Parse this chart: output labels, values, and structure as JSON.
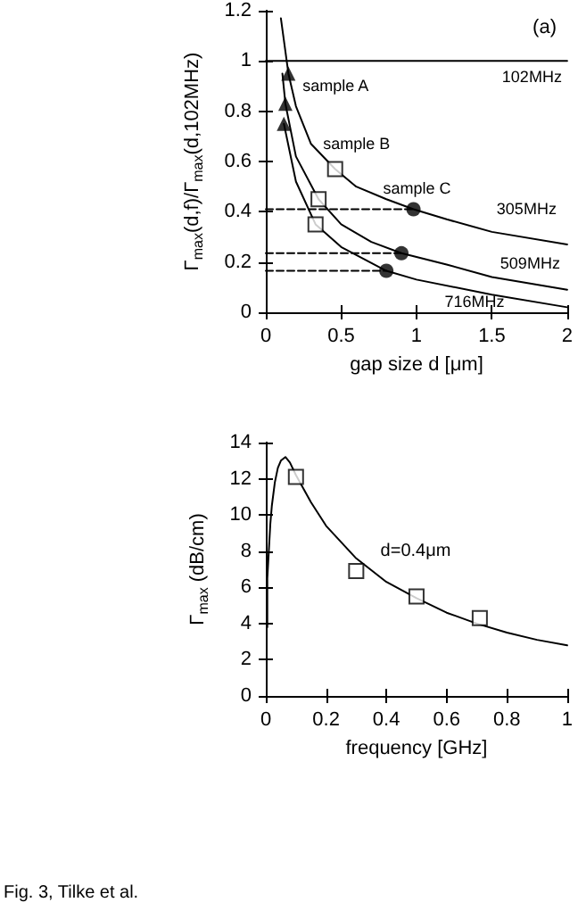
{
  "chart_data": [
    {
      "type": "line",
      "title": "(a)",
      "xlabel": "gap size d [μm]",
      "ylabel": "Γ$_{max}$(d,f)/Γ$_{max}$(d,102MHz)",
      "xlim": [
        0,
        2
      ],
      "xticks": [
        0,
        0.5,
        1,
        1.5,
        2
      ],
      "ylim": [
        0,
        1.2
      ],
      "yticks": [
        0,
        0.2,
        0.4,
        0.6,
        0.8,
        1,
        1.2
      ],
      "series": [
        {
          "name": "102MHz",
          "color": "#000000",
          "marker": "none",
          "x": [
            0,
            2
          ],
          "values": [
            1,
            1
          ]
        },
        {
          "name": "305MHz",
          "color": "#000000",
          "marker": "none",
          "x": [
            0.1,
            0.15,
            0.2,
            0.3,
            0.46,
            0.6,
            0.8,
            0.98,
            1.2,
            1.5,
            2
          ],
          "values": [
            1.17,
            0.95,
            0.82,
            0.67,
            0.57,
            0.5,
            0.45,
            0.41,
            0.37,
            0.32,
            0.27
          ]
        },
        {
          "name": "509MHz",
          "color": "#000000",
          "marker": "none",
          "x": [
            0.11,
            0.13,
            0.2,
            0.35,
            0.5,
            0.7,
            0.9,
            1.2,
            1.5,
            2
          ],
          "values": [
            0.95,
            0.83,
            0.62,
            0.45,
            0.35,
            0.28,
            0.235,
            0.19,
            0.14,
            0.09
          ]
        },
        {
          "name": "716MHz",
          "color": "#000000",
          "marker": "none",
          "x": [
            0.12,
            0.2,
            0.33,
            0.5,
            0.8,
            1,
            1.5,
            2
          ],
          "values": [
            0.75,
            0.52,
            0.35,
            0.26,
            0.165,
            0.13,
            0.07,
            0.02
          ]
        },
        {
          "color": "#000000",
          "marker": "none",
          "line_style": "dashed",
          "x": [
            0,
            0.98
          ],
          "values": [
            0.41,
            0.41
          ]
        },
        {
          "color": "#000000",
          "marker": "none",
          "line_style": "dashed",
          "x": [
            0,
            0.9
          ],
          "values": [
            0.235,
            0.235
          ]
        },
        {
          "color": "#000000",
          "marker": "none",
          "line_style": "dashed",
          "x": [
            0,
            0.8
          ],
          "values": [
            0.165,
            0.165
          ]
        },
        {
          "name": "sample A",
          "type": "scatter",
          "color": "#000000",
          "marker": "triangle",
          "x": [
            0.15,
            0.13,
            0.12
          ],
          "values": [
            0.95,
            0.83,
            0.75
          ]
        },
        {
          "name": "sample B",
          "type": "scatter",
          "color": "#000000",
          "marker": "square",
          "x": [
            0.46,
            0.35,
            0.33
          ],
          "values": [
            0.57,
            0.45,
            0.35
          ]
        },
        {
          "name": "sample C",
          "type": "scatter",
          "color": "#000000",
          "marker": "circle",
          "x": [
            0.98,
            0.9,
            0.8
          ],
          "values": [
            0.41,
            0.235,
            0.165
          ]
        }
      ]
    },
    {
      "type": "line",
      "xlabel": "frequency [GHz]",
      "ylabel": "Γ$_{max}$ (dB/cm)",
      "xlim": [
        0,
        1
      ],
      "xticks": [
        0,
        0.2,
        0.4,
        0.6,
        0.8,
        1
      ],
      "ylim": [
        0,
        14
      ],
      "yticks": [
        0,
        2,
        4,
        6,
        8,
        10,
        12,
        14
      ],
      "series": [
        {
          "color": "#000000",
          "marker": "none",
          "x": [
            0.005,
            0.005,
            0.01,
            0.015,
            0.02,
            0.03,
            0.04,
            0.05,
            0.065,
            0.08,
            0.1,
            0.15,
            0.2,
            0.3,
            0.4,
            0.5,
            0.6,
            0.7,
            0.8,
            0.9,
            1
          ],
          "values": [
            3.8,
            6.5,
            8,
            9.5,
            10.5,
            11.8,
            12.6,
            13.0,
            13.2,
            12.9,
            12.2,
            10.7,
            9.4,
            7.6,
            6.3,
            5.4,
            4.6,
            4.0,
            3.5,
            3.1,
            2.8
          ]
        },
        {
          "type": "scatter",
          "color": "#000000",
          "marker": "square",
          "x": [
            0.1,
            0.3,
            0.5,
            0.71
          ],
          "values": [
            12.1,
            6.9,
            5.5,
            4.3
          ]
        }
      ],
      "annotations": [
        "d=0.4μm",
        "Fig. 3, Tilke et al."
      ]
    }
  ]
}
